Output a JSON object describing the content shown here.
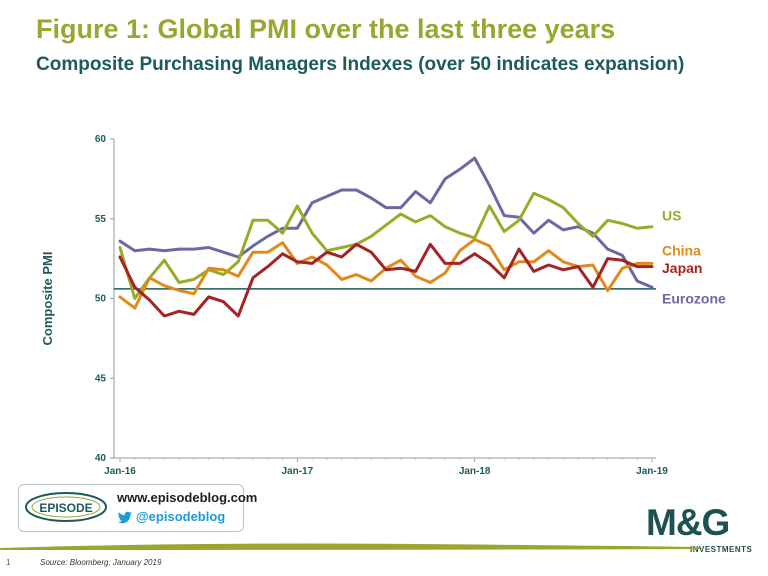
{
  "title": "Figure 1: Global PMI over the last three years",
  "subtitle": "Composite Purchasing Managers Indexes (over 50 indicates expansion)",
  "branding": {
    "episode_logo_text": "EPISODE",
    "website": "www.episodeblog.com",
    "twitter": "@episodeblog",
    "mg_logo": "M&G",
    "mg_sub": "INVESTMENTS"
  },
  "footer": {
    "page_number": "1",
    "source": "Source: Bloomberg, January 2019"
  },
  "colors": {
    "title": "#9aa630",
    "subtitle": "#1d5a5a",
    "axis_label": "#1d5a5a",
    "reference_line": "#1d5a5a"
  },
  "chart_data": {
    "type": "line",
    "ylabel": "Composite PMI",
    "ylim": [
      40,
      60
    ],
    "yticks": [
      "40",
      "45",
      "50",
      "55",
      "60"
    ],
    "xticks": [
      {
        "label": "Jan-16",
        "index": 0
      },
      {
        "label": "Jan-17",
        "index": 12
      },
      {
        "label": "Jan-18",
        "index": 24
      },
      {
        "label": "Jan-19",
        "index": 36
      }
    ],
    "reference_line": 50.6,
    "grid": false,
    "legend": "inline-right",
    "series": [
      {
        "name": "US",
        "color": "#9aab2a",
        "values": [
          53.2,
          50.0,
          51.3,
          52.4,
          51.0,
          51.2,
          51.8,
          51.5,
          52.3,
          54.9,
          54.9,
          54.1,
          55.8,
          54.1,
          53.0,
          53.2,
          53.4,
          53.9,
          54.6,
          55.3,
          54.8,
          55.2,
          54.5,
          54.1,
          53.8,
          55.8,
          54.2,
          54.9,
          56.6,
          56.2,
          55.7,
          54.7,
          53.9,
          54.9,
          54.7,
          54.4,
          54.5
        ],
        "label_value": 55.2
      },
      {
        "name": "China",
        "color": "#e08a1c",
        "values": [
          50.1,
          49.4,
          51.3,
          50.8,
          50.5,
          50.3,
          51.9,
          51.8,
          51.4,
          52.9,
          52.9,
          53.5,
          52.2,
          52.6,
          52.1,
          51.2,
          51.5,
          51.1,
          51.9,
          52.4,
          51.4,
          51.0,
          51.6,
          53.0,
          53.7,
          53.3,
          51.8,
          52.3,
          52.3,
          53.0,
          52.3,
          52.0,
          52.1,
          50.5,
          51.9,
          52.2,
          52.2
        ],
        "label_value": 53.0
      },
      {
        "name": "Japan",
        "color": "#a32326",
        "values": [
          52.6,
          50.7,
          49.9,
          48.9,
          49.2,
          49.0,
          50.1,
          49.8,
          48.9,
          51.3,
          52.0,
          52.8,
          52.3,
          52.2,
          52.9,
          52.6,
          53.4,
          52.9,
          51.8,
          51.9,
          51.7,
          53.4,
          52.2,
          52.2,
          52.8,
          52.2,
          51.3,
          53.1,
          51.7,
          52.1,
          51.8,
          52.0,
          50.7,
          52.5,
          52.4,
          52.0,
          52.0
        ],
        "label_value": 51.9
      },
      {
        "name": "Eurozone",
        "color": "#6a6aa3",
        "values": [
          53.6,
          53.0,
          53.1,
          53.0,
          53.1,
          53.1,
          53.2,
          52.9,
          52.6,
          53.3,
          53.9,
          54.4,
          54.4,
          56.0,
          56.4,
          56.8,
          56.8,
          56.3,
          55.7,
          55.7,
          56.7,
          56.0,
          57.5,
          58.1,
          58.8,
          57.1,
          55.2,
          55.1,
          54.1,
          54.9,
          54.3,
          54.5,
          54.1,
          53.1,
          52.7,
          51.1,
          50.7
        ],
        "label_value": 50.0
      }
    ]
  }
}
